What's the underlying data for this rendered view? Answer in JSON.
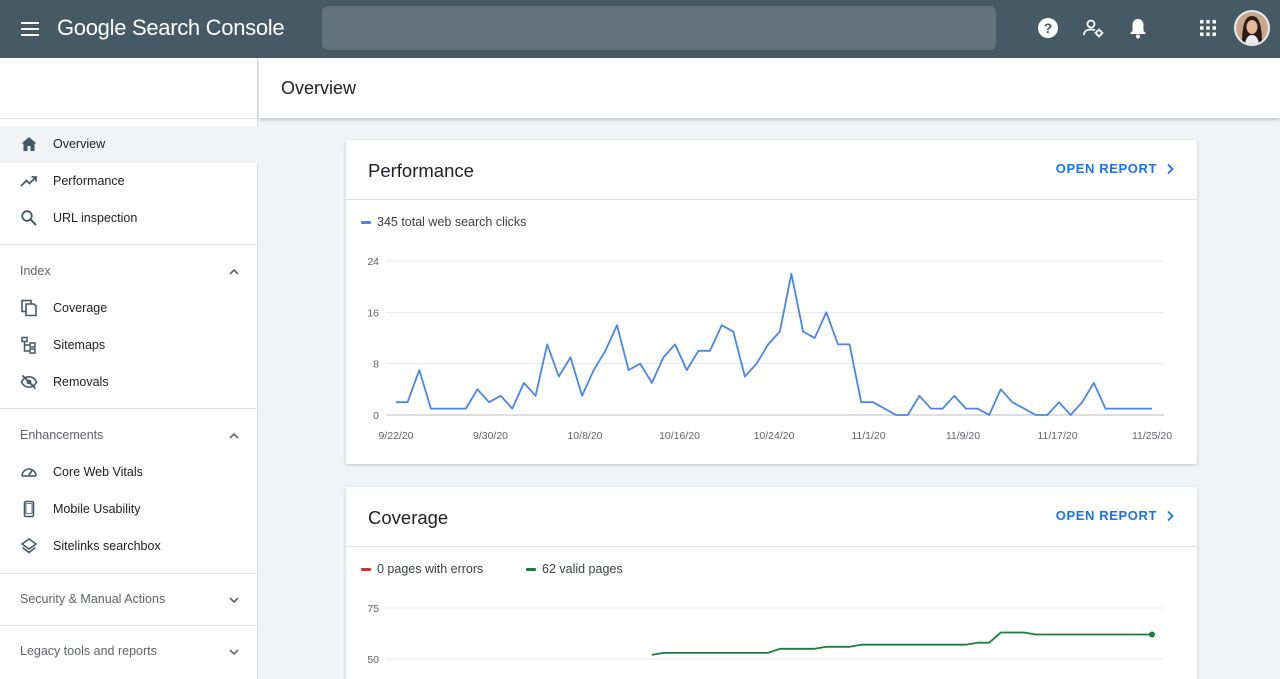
{
  "app": {
    "brand_name": "Google Search Console",
    "search_placeholder": ""
  },
  "topbar_icons": [
    "help-icon",
    "manage-users-icon",
    "notifications-icon",
    "apps-grid-icon",
    "user-avatar"
  ],
  "sidebar": {
    "main_items": [
      {
        "label": "Overview",
        "icon": "home-icon",
        "active": true
      },
      {
        "label": "Performance",
        "icon": "trending-up-icon",
        "active": false
      },
      {
        "label": "URL inspection",
        "icon": "search-icon",
        "active": false
      }
    ],
    "index": {
      "label": "Index",
      "expanded": true,
      "items": [
        {
          "label": "Coverage",
          "icon": "file-copy-icon"
        },
        {
          "label": "Sitemaps",
          "icon": "sitemap-icon"
        },
        {
          "label": "Removals",
          "icon": "visibility-off-icon"
        }
      ]
    },
    "enhancements": {
      "label": "Enhancements",
      "expanded": true,
      "items": [
        {
          "label": "Core Web Vitals",
          "icon": "speedometer-icon"
        },
        {
          "label": "Mobile Usability",
          "icon": "smartphone-icon"
        },
        {
          "label": "Sitelinks searchbox",
          "icon": "layers-icon"
        }
      ]
    },
    "security": {
      "label": "Security & Manual Actions",
      "expanded": false
    },
    "legacy": {
      "label": "Legacy tools and reports",
      "expanded": false
    }
  },
  "page": {
    "title": "Overview"
  },
  "performance_card": {
    "title": "Performance",
    "link_label": "OPEN REPORT",
    "legend_label": "345 total web search clicks",
    "line_color": "#4a86e8"
  },
  "coverage_card": {
    "title": "Coverage",
    "link_label": "OPEN REPORT",
    "legend_errors": "0 pages with errors",
    "legend_valid": "62 valid pages",
    "error_color": "#d93025",
    "valid_color": "#188038"
  },
  "chart_data": [
    {
      "type": "line",
      "title": "Performance",
      "series": [
        {
          "name": "345 total web search clicks",
          "color": "#4a86e8",
          "values": [
            2,
            2,
            7,
            1,
            1,
            1,
            1,
            4,
            2,
            3,
            1,
            5,
            3,
            11,
            6,
            9,
            3,
            7,
            10,
            14,
            7,
            8,
            5,
            9,
            11,
            7,
            10,
            10,
            14,
            13,
            6,
            8,
            11,
            13,
            22,
            13,
            12,
            16,
            11,
            11,
            2,
            2,
            1,
            0,
            0,
            3,
            1,
            1,
            3,
            1,
            1,
            0,
            4,
            2,
            1,
            0,
            0,
            2,
            0,
            2,
            5,
            1,
            1,
            1,
            1,
            1
          ]
        }
      ],
      "x_tick_labels": [
        "9/22/20",
        "9/30/20",
        "10/8/20",
        "10/16/20",
        "10/24/20",
        "11/1/20",
        "11/9/20",
        "11/17/20",
        "11/25/20"
      ],
      "y_ticks": [
        0,
        8,
        16,
        24
      ],
      "ylim": [
        0,
        24
      ]
    },
    {
      "type": "line",
      "title": "Coverage",
      "series": [
        {
          "name": "0 pages with errors",
          "color": "#d93025",
          "values": []
        },
        {
          "name": "62 valid pages",
          "color": "#188038",
          "x_start_index": 22,
          "values": [
            52,
            53,
            53,
            53,
            53,
            53,
            53,
            53,
            53,
            53,
            53,
            55,
            55,
            55,
            55,
            56,
            56,
            56,
            57,
            57,
            57,
            57,
            57,
            57,
            57,
            57,
            57,
            57,
            58,
            58,
            63,
            63,
            63,
            62,
            62,
            62,
            62,
            62,
            62,
            62,
            62,
            62,
            62,
            62
          ]
        }
      ],
      "y_ticks": [
        50,
        75
      ],
      "ylim": [
        50,
        75
      ]
    }
  ]
}
